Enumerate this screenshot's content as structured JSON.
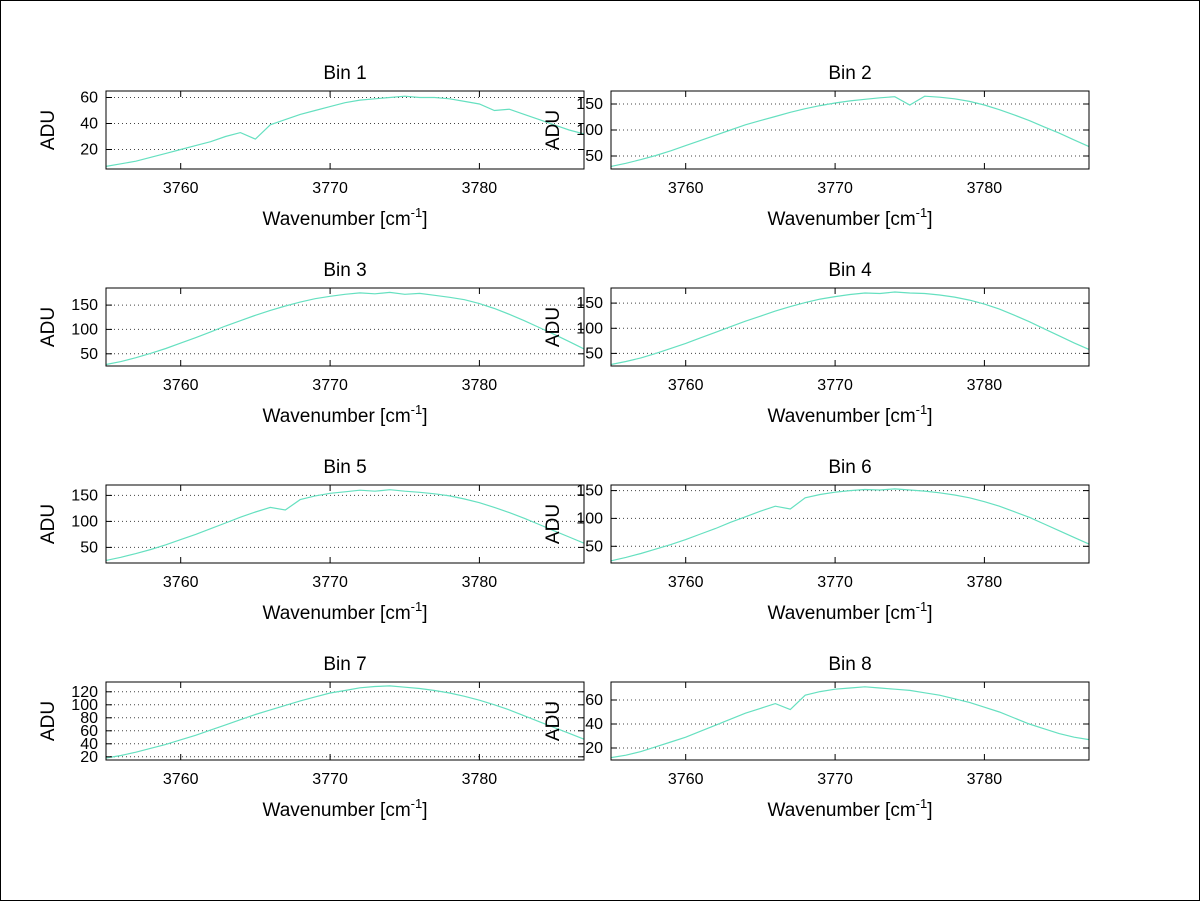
{
  "figure": {
    "background": "#ffffff",
    "line_color": "#66e0c0",
    "grid_color": "#444444",
    "axis_color": "#000000"
  },
  "x_values": [
    3755,
    3756,
    3757,
    3758,
    3759,
    3760,
    3761,
    3762,
    3763,
    3764,
    3765,
    3766,
    3767,
    3768,
    3769,
    3770,
    3771,
    3772,
    3773,
    3774,
    3775,
    3776,
    3777,
    3778,
    3779,
    3780,
    3781,
    3782,
    3783,
    3784,
    3785,
    3786,
    3787
  ],
  "chart_data": [
    {
      "type": "line",
      "title": "Bin 1",
      "ylabel": "ADU",
      "xlabel_base": "Wavenumber [cm",
      "xlabel_sup": "-1",
      "xlabel_close": "]",
      "x_ticks": [
        3760,
        3770,
        3780
      ],
      "y_ticks": [
        20,
        40,
        60
      ],
      "xlim": [
        3755,
        3787
      ],
      "ylim": [
        5,
        65
      ],
      "grid": "horizontal-dotted",
      "values": [
        7,
        9,
        11,
        14,
        17,
        20,
        23,
        26,
        30,
        33,
        28,
        39,
        43,
        47,
        50,
        53,
        56,
        58,
        59,
        60,
        61,
        60,
        60,
        59,
        57,
        55,
        50,
        51,
        47,
        43,
        39,
        35,
        32
      ]
    },
    {
      "type": "line",
      "title": "Bin 2",
      "ylabel": "ADU",
      "xlabel_base": "Wavenumber [cm",
      "xlabel_sup": "-1",
      "xlabel_close": "]",
      "x_ticks": [
        3760,
        3770,
        3780
      ],
      "y_ticks": [
        50,
        100,
        150
      ],
      "xlim": [
        3755,
        3787
      ],
      "ylim": [
        25,
        175
      ],
      "grid": "horizontal-dotted",
      "values": [
        30,
        36,
        43,
        51,
        60,
        70,
        80,
        90,
        100,
        110,
        118,
        126,
        134,
        141,
        147,
        152,
        156,
        159,
        162,
        164,
        148,
        165,
        163,
        160,
        155,
        148,
        139,
        129,
        118,
        106,
        94,
        81,
        68
      ]
    },
    {
      "type": "line",
      "title": "Bin 3",
      "ylabel": "ADU",
      "xlabel_base": "Wavenumber [cm",
      "xlabel_sup": "-1",
      "xlabel_close": "]",
      "x_ticks": [
        3760,
        3770,
        3780
      ],
      "y_ticks": [
        50,
        100,
        150
      ],
      "xlim": [
        3755,
        3787
      ],
      "ylim": [
        25,
        185
      ],
      "grid": "horizontal-dotted",
      "values": [
        28,
        34,
        42,
        51,
        61,
        72,
        83,
        95,
        107,
        118,
        129,
        139,
        148,
        156,
        163,
        168,
        172,
        175,
        173,
        176,
        172,
        174,
        170,
        166,
        161,
        153,
        143,
        131,
        118,
        104,
        90,
        75,
        60
      ]
    },
    {
      "type": "line",
      "title": "Bin 4",
      "ylabel": "ADU",
      "xlabel_base": "Wavenumber [cm",
      "xlabel_sup": "-1",
      "xlabel_close": "]",
      "x_ticks": [
        3760,
        3770,
        3780
      ],
      "y_ticks": [
        50,
        100,
        150
      ],
      "xlim": [
        3755,
        3787
      ],
      "ylim": [
        25,
        180
      ],
      "grid": "horizontal-dotted",
      "values": [
        28,
        34,
        41,
        50,
        60,
        70,
        81,
        92,
        103,
        114,
        124,
        134,
        143,
        151,
        158,
        163,
        167,
        170,
        169,
        172,
        170,
        169,
        166,
        162,
        156,
        148,
        138,
        126,
        113,
        99,
        85,
        71,
        58
      ]
    },
    {
      "type": "line",
      "title": "Bin 5",
      "ylabel": "ADU",
      "xlabel_base": "Wavenumber [cm",
      "xlabel_sup": "-1",
      "xlabel_close": "]",
      "x_ticks": [
        3760,
        3770,
        3780
      ],
      "y_ticks": [
        50,
        100,
        150
      ],
      "xlim": [
        3755,
        3787
      ],
      "ylim": [
        20,
        170
      ],
      "grid": "horizontal-dotted",
      "values": [
        25,
        31,
        38,
        46,
        55,
        65,
        75,
        86,
        97,
        108,
        118,
        127,
        122,
        142,
        149,
        154,
        157,
        160,
        158,
        161,
        158,
        156,
        153,
        149,
        143,
        136,
        127,
        117,
        106,
        94,
        82,
        70,
        58
      ]
    },
    {
      "type": "line",
      "title": "Bin 6",
      "ylabel": "ADU",
      "xlabel_base": "Wavenumber [cm",
      "xlabel_sup": "-1",
      "xlabel_close": "]",
      "x_ticks": [
        3760,
        3770,
        3780
      ],
      "y_ticks": [
        50,
        100,
        150
      ],
      "xlim": [
        3755,
        3787
      ],
      "ylim": [
        20,
        160
      ],
      "grid": "horizontal-dotted",
      "values": [
        24,
        30,
        37,
        45,
        53,
        62,
        72,
        82,
        93,
        103,
        113,
        122,
        117,
        137,
        143,
        147,
        150,
        152,
        151,
        153,
        151,
        149,
        146,
        142,
        137,
        130,
        122,
        112,
        102,
        90,
        78,
        66,
        54
      ]
    },
    {
      "type": "line",
      "title": "Bin 7",
      "ylabel": "ADU",
      "xlabel_base": "Wavenumber [cm",
      "xlabel_sup": "-1",
      "xlabel_close": "]",
      "x_ticks": [
        3760,
        3770,
        3780
      ],
      "y_ticks": [
        20,
        40,
        60,
        80,
        100,
        120
      ],
      "xlim": [
        3755,
        3787
      ],
      "ylim": [
        15,
        135
      ],
      "grid": "horizontal-dotted",
      "values": [
        18,
        22,
        27,
        33,
        39,
        46,
        53,
        61,
        69,
        77,
        85,
        92,
        99,
        106,
        112,
        118,
        122,
        126,
        128,
        129,
        127,
        125,
        122,
        118,
        113,
        107,
        100,
        92,
        83,
        74,
        65,
        56,
        47
      ]
    },
    {
      "type": "line",
      "title": "Bin 8",
      "ylabel": "ADU",
      "xlabel_base": "Wavenumber [cm",
      "xlabel_sup": "-1",
      "xlabel_close": "]",
      "x_ticks": [
        3760,
        3770,
        3780
      ],
      "y_ticks": [
        20,
        40,
        60
      ],
      "xlim": [
        3755,
        3787
      ],
      "ylim": [
        10,
        75
      ],
      "grid": "horizontal-dotted",
      "values": [
        12,
        14,
        17,
        21,
        25,
        29,
        34,
        39,
        44,
        49,
        53,
        57,
        52,
        64,
        67,
        69,
        70,
        71,
        70,
        69,
        68,
        66,
        64,
        61,
        58,
        54,
        50,
        45,
        40,
        36,
        32,
        29,
        27
      ]
    }
  ]
}
